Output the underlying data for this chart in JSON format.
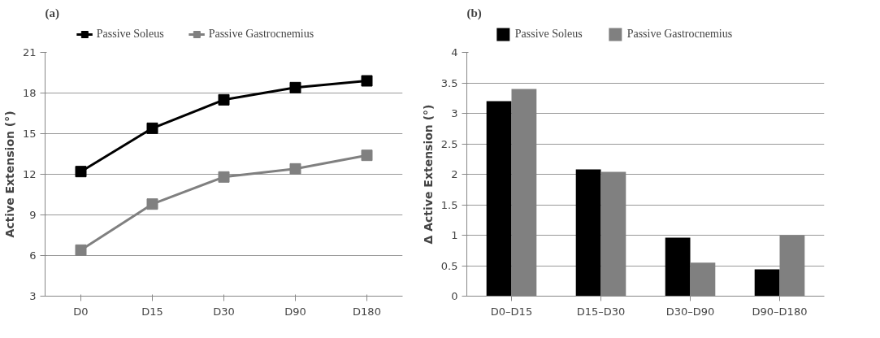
{
  "chart_data": [
    {
      "type": "line",
      "title": "(a)",
      "ylabel": "Active Extension (°)",
      "categories": [
        "D0",
        "D15",
        "D30",
        "D90",
        "D180"
      ],
      "series": [
        {
          "name": "Passive Soleus",
          "color": "#000000",
          "values": [
            12.2,
            15.4,
            17.5,
            18.4,
            18.9
          ]
        },
        {
          "name": "Passive Gastrocnemius",
          "color": "#808080",
          "values": [
            6.4,
            9.8,
            11.8,
            12.4,
            13.4
          ]
        }
      ],
      "ylim": [
        3,
        21
      ],
      "yticks": [
        3,
        6,
        9,
        12,
        15,
        18,
        21
      ],
      "grid": "y",
      "legend": "top",
      "marker": "square",
      "line_style": "solid"
    },
    {
      "type": "bar",
      "title": "(b)",
      "ylabel": "Δ Active Extension (°)",
      "categories": [
        "D0–D15",
        "D15–D30",
        "D30–D90",
        "D90–D180"
      ],
      "series": [
        {
          "name": "Passive Soleus",
          "color": "#000000",
          "values": [
            3.2,
            2.08,
            0.96,
            0.44
          ]
        },
        {
          "name": "Passive Gastrocnemius",
          "color": "#808080",
          "values": [
            3.4,
            2.04,
            0.55,
            1.0
          ]
        }
      ],
      "ylim": [
        0,
        4
      ],
      "yticks": [
        0,
        0.5,
        1,
        1.5,
        2,
        2.5,
        3,
        3.5,
        4
      ],
      "grid": "y",
      "legend": "top"
    }
  ]
}
